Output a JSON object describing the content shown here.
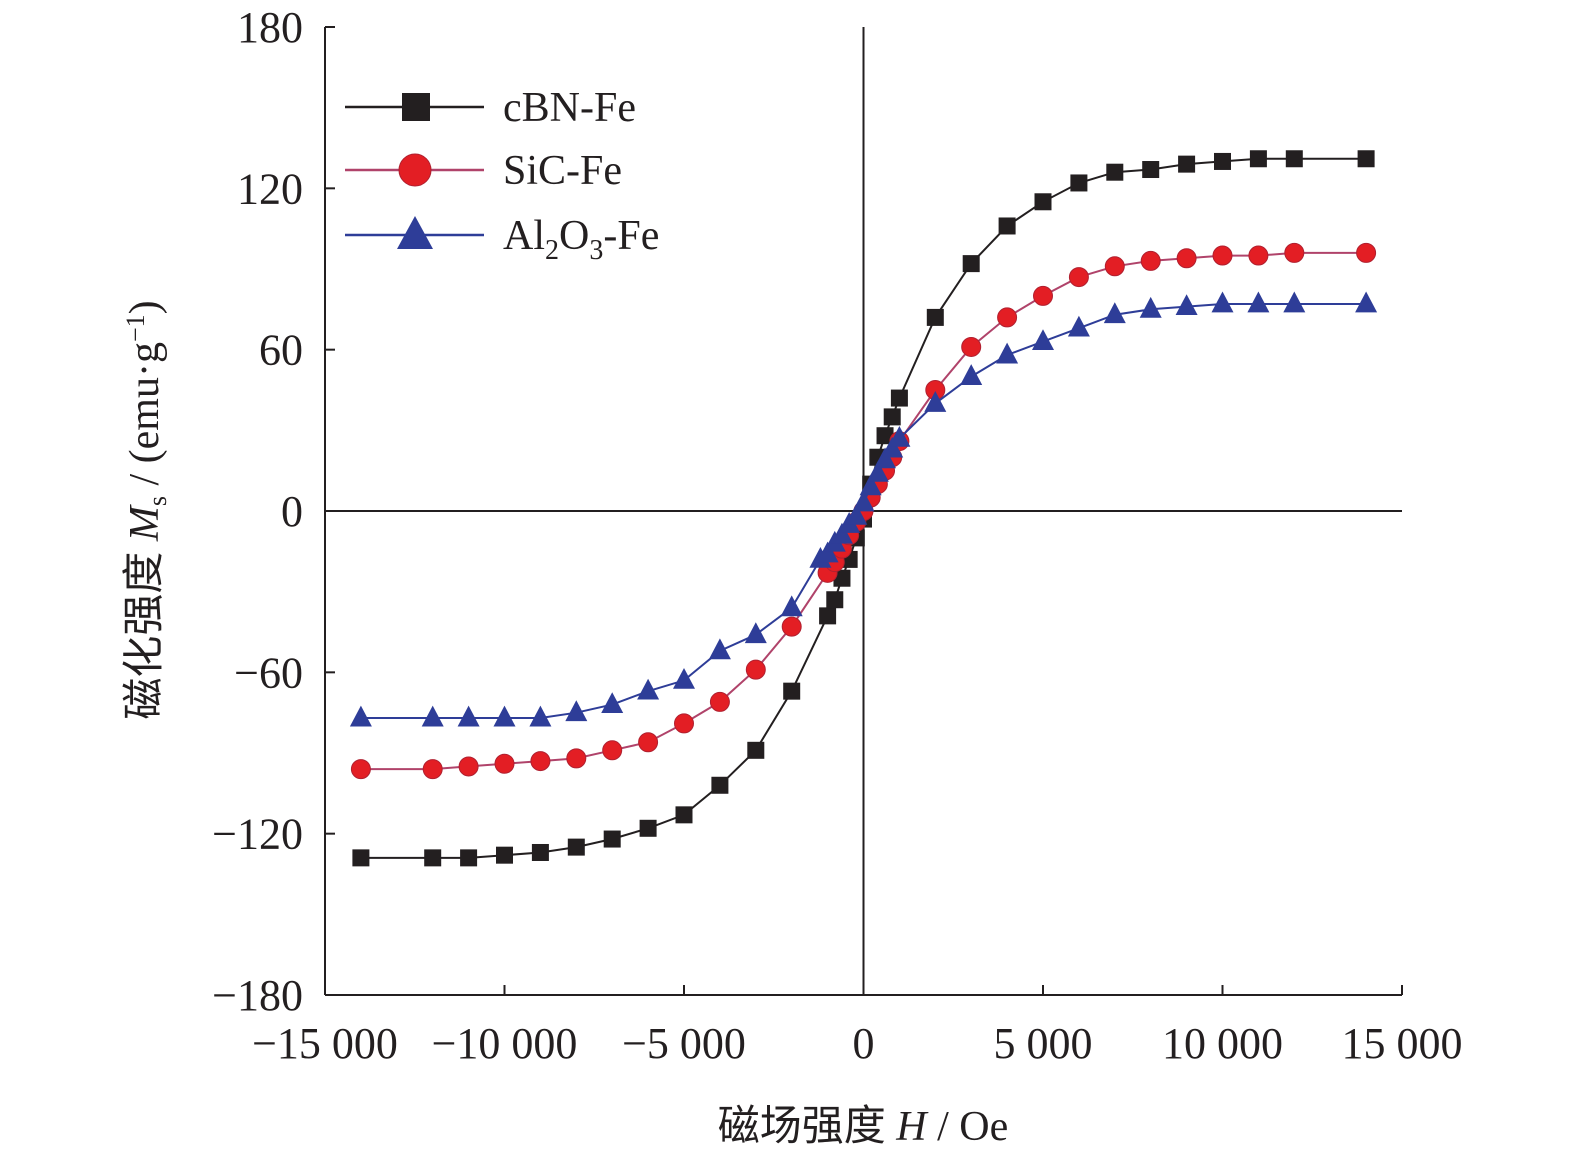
{
  "chart_data": {
    "type": "line",
    "xlabel": "磁场强度 H / Oe",
    "xlabel_parts": [
      "磁场强度 ",
      "H",
      " / Oe"
    ],
    "ylabel": "磁化强度 Ms / (emu·g−1)",
    "ylabel_parts": [
      "磁化强度 ",
      "M",
      "s",
      " / (emu·g",
      "−1",
      ")"
    ],
    "xlim": [
      -15000,
      15000
    ],
    "ylim": [
      -180,
      180
    ],
    "x_ticks": [
      -15000,
      -10000,
      -5000,
      0,
      5000,
      10000,
      15000
    ],
    "x_tick_labels": [
      "−15 000",
      "−10 000",
      "−5 000",
      "0",
      "5 000",
      "10 000",
      "15 000"
    ],
    "y_ticks": [
      -180,
      -120,
      -60,
      0,
      60,
      120,
      180
    ],
    "y_tick_labels": [
      "−180",
      "−120",
      "−60",
      "0",
      "60",
      "120",
      "180"
    ],
    "grid": false,
    "legend_position": "top-left",
    "series": [
      {
        "name": "cBN-Fe",
        "legend_parts": [
          "cBN-Fe"
        ],
        "color": "#231f20",
        "line_color": "#231f20",
        "marker": "square",
        "points": [
          [
            -14000,
            -129
          ],
          [
            -12000,
            -129
          ],
          [
            -11000,
            -129
          ],
          [
            -10000,
            -128
          ],
          [
            -9000,
            -127
          ],
          [
            -8000,
            -125
          ],
          [
            -7000,
            -122
          ],
          [
            -6000,
            -118
          ],
          [
            -5000,
            -113
          ],
          [
            -4000,
            -102
          ],
          [
            -3000,
            -89
          ],
          [
            -2000,
            -67
          ],
          [
            -1000,
            -39
          ],
          [
            -800,
            -33
          ],
          [
            -600,
            -25
          ],
          [
            -400,
            -18
          ],
          [
            -200,
            -10
          ],
          [
            0,
            -3
          ],
          [
            200,
            10
          ],
          [
            400,
            20
          ],
          [
            600,
            28
          ],
          [
            800,
            35
          ],
          [
            1000,
            42
          ],
          [
            2000,
            72
          ],
          [
            3000,
            92
          ],
          [
            4000,
            106
          ],
          [
            5000,
            115
          ],
          [
            6000,
            122
          ],
          [
            7000,
            126
          ],
          [
            8000,
            127
          ],
          [
            9000,
            129
          ],
          [
            10000,
            130
          ],
          [
            11000,
            131
          ],
          [
            12000,
            131
          ],
          [
            14000,
            131
          ]
        ]
      },
      {
        "name": "SiC-Fe",
        "legend_parts": [
          "SiC-Fe"
        ],
        "color": "#e31e24",
        "line_color": "#b0436a",
        "marker": "circle",
        "points": [
          [
            -14000,
            -96
          ],
          [
            -12000,
            -96
          ],
          [
            -11000,
            -95
          ],
          [
            -10000,
            -94
          ],
          [
            -9000,
            -93
          ],
          [
            -8000,
            -92
          ],
          [
            -7000,
            -89
          ],
          [
            -6000,
            -86
          ],
          [
            -5000,
            -79
          ],
          [
            -4000,
            -71
          ],
          [
            -3000,
            -59
          ],
          [
            -2000,
            -43
          ],
          [
            -1000,
            -23
          ],
          [
            -800,
            -19
          ],
          [
            -600,
            -14
          ],
          [
            -400,
            -9
          ],
          [
            -200,
            -4
          ],
          [
            0,
            0
          ],
          [
            200,
            5
          ],
          [
            400,
            10
          ],
          [
            600,
            15
          ],
          [
            800,
            20
          ],
          [
            1000,
            26
          ],
          [
            2000,
            45
          ],
          [
            3000,
            61
          ],
          [
            4000,
            72
          ],
          [
            5000,
            80
          ],
          [
            6000,
            87
          ],
          [
            7000,
            91
          ],
          [
            8000,
            93
          ],
          [
            9000,
            94
          ],
          [
            10000,
            95
          ],
          [
            11000,
            95
          ],
          [
            12000,
            96
          ],
          [
            14000,
            96
          ]
        ]
      },
      {
        "name": "Al2O3-Fe",
        "legend_parts": [
          "Al",
          "2",
          "O",
          "3",
          "-Fe"
        ],
        "color": "#2e3d98",
        "line_color": "#2e3d98",
        "marker": "triangle",
        "points": [
          [
            -14000,
            -77
          ],
          [
            -12000,
            -77
          ],
          [
            -11000,
            -77
          ],
          [
            -10000,
            -77
          ],
          [
            -9000,
            -77
          ],
          [
            -8000,
            -75
          ],
          [
            -7000,
            -72
          ],
          [
            -6000,
            -67
          ],
          [
            -5000,
            -63
          ],
          [
            -4000,
            -52
          ],
          [
            -3000,
            -46
          ],
          [
            -2000,
            -36
          ],
          [
            -1200,
            -18
          ],
          [
            -1000,
            -16
          ],
          [
            -800,
            -12
          ],
          [
            -600,
            -9
          ],
          [
            -400,
            -5
          ],
          [
            -200,
            -2
          ],
          [
            0,
            3
          ],
          [
            200,
            9
          ],
          [
            400,
            14
          ],
          [
            600,
            19
          ],
          [
            800,
            23
          ],
          [
            1000,
            27
          ],
          [
            2000,
            40
          ],
          [
            3000,
            50
          ],
          [
            4000,
            58
          ],
          [
            5000,
            63
          ],
          [
            6000,
            68
          ],
          [
            7000,
            73
          ],
          [
            8000,
            75
          ],
          [
            9000,
            76
          ],
          [
            10000,
            77
          ],
          [
            11000,
            77
          ],
          [
            12000,
            77
          ],
          [
            14000,
            77
          ]
        ]
      }
    ]
  }
}
